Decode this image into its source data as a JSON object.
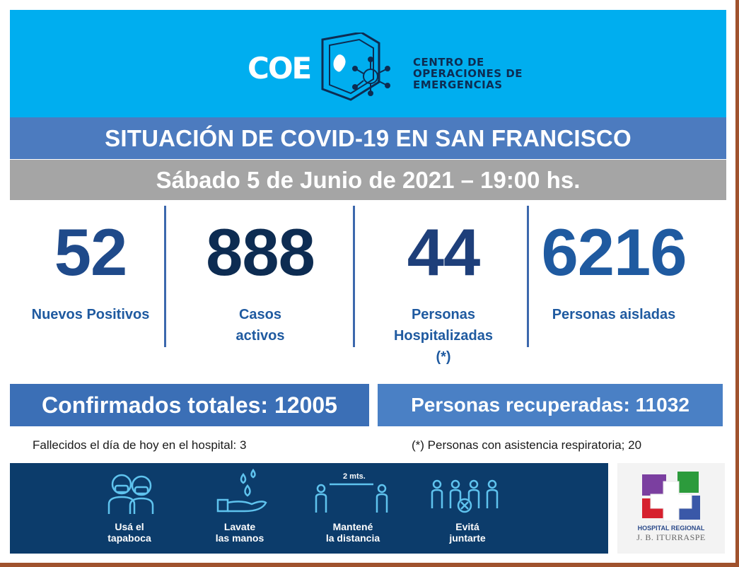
{
  "header": {
    "logo_text": "COE",
    "logo_subtitle": [
      "CENTRO DE",
      "OPERACIONES DE",
      "EMERGENCIAS"
    ]
  },
  "title": "SITUACIÓN DE COVID-19 EN SAN FRANCISCO",
  "date": "Sábado 5 de Junio de 2021 – 19:00 hs.",
  "stats": [
    {
      "value": "52",
      "label": [
        "Nuevos Positivos"
      ],
      "color": "#1f4a8a"
    },
    {
      "value": "888",
      "label": [
        "Casos",
        "activos"
      ],
      "color": "#0d2c52"
    },
    {
      "value": "44",
      "label": [
        "Personas",
        "Hospitalizadas",
        "(*)"
      ],
      "color": "#1e3f7a"
    },
    {
      "value": "6216",
      "label": [
        "Personas aisladas"
      ],
      "color": "#1f5aa0"
    }
  ],
  "totals": {
    "confirmed": "Confirmados totales: 12005",
    "recovered": "Personas recuperadas: 11032"
  },
  "notes": {
    "deaths": "Fallecidos el día de hoy en el hospital: 3",
    "respiratory": "(*) Personas con asistencia respiratoria; 20"
  },
  "tips": [
    {
      "icon": "mask-people-icon",
      "label": [
        "Usá el",
        "tapaboca"
      ]
    },
    {
      "icon": "wash-hands-icon",
      "label": [
        "Lavate",
        "las manos"
      ]
    },
    {
      "icon": "distance-icon",
      "label": [
        "Mantené",
        "la distancia"
      ],
      "distance": "2 mts."
    },
    {
      "icon": "no-gathering-icon",
      "label": [
        "Evitá",
        "juntarte"
      ]
    }
  ],
  "hospital": {
    "name": "HOSPITAL REGIONAL",
    "subname": "J. B. ITURRASPE"
  },
  "colors": {
    "header_bg": "#00aeef",
    "title_bg": "#4c7bbf",
    "date_bg": "#a5a5a5",
    "banner_bg": "#0c3c6b",
    "frame": "#a0522d"
  }
}
